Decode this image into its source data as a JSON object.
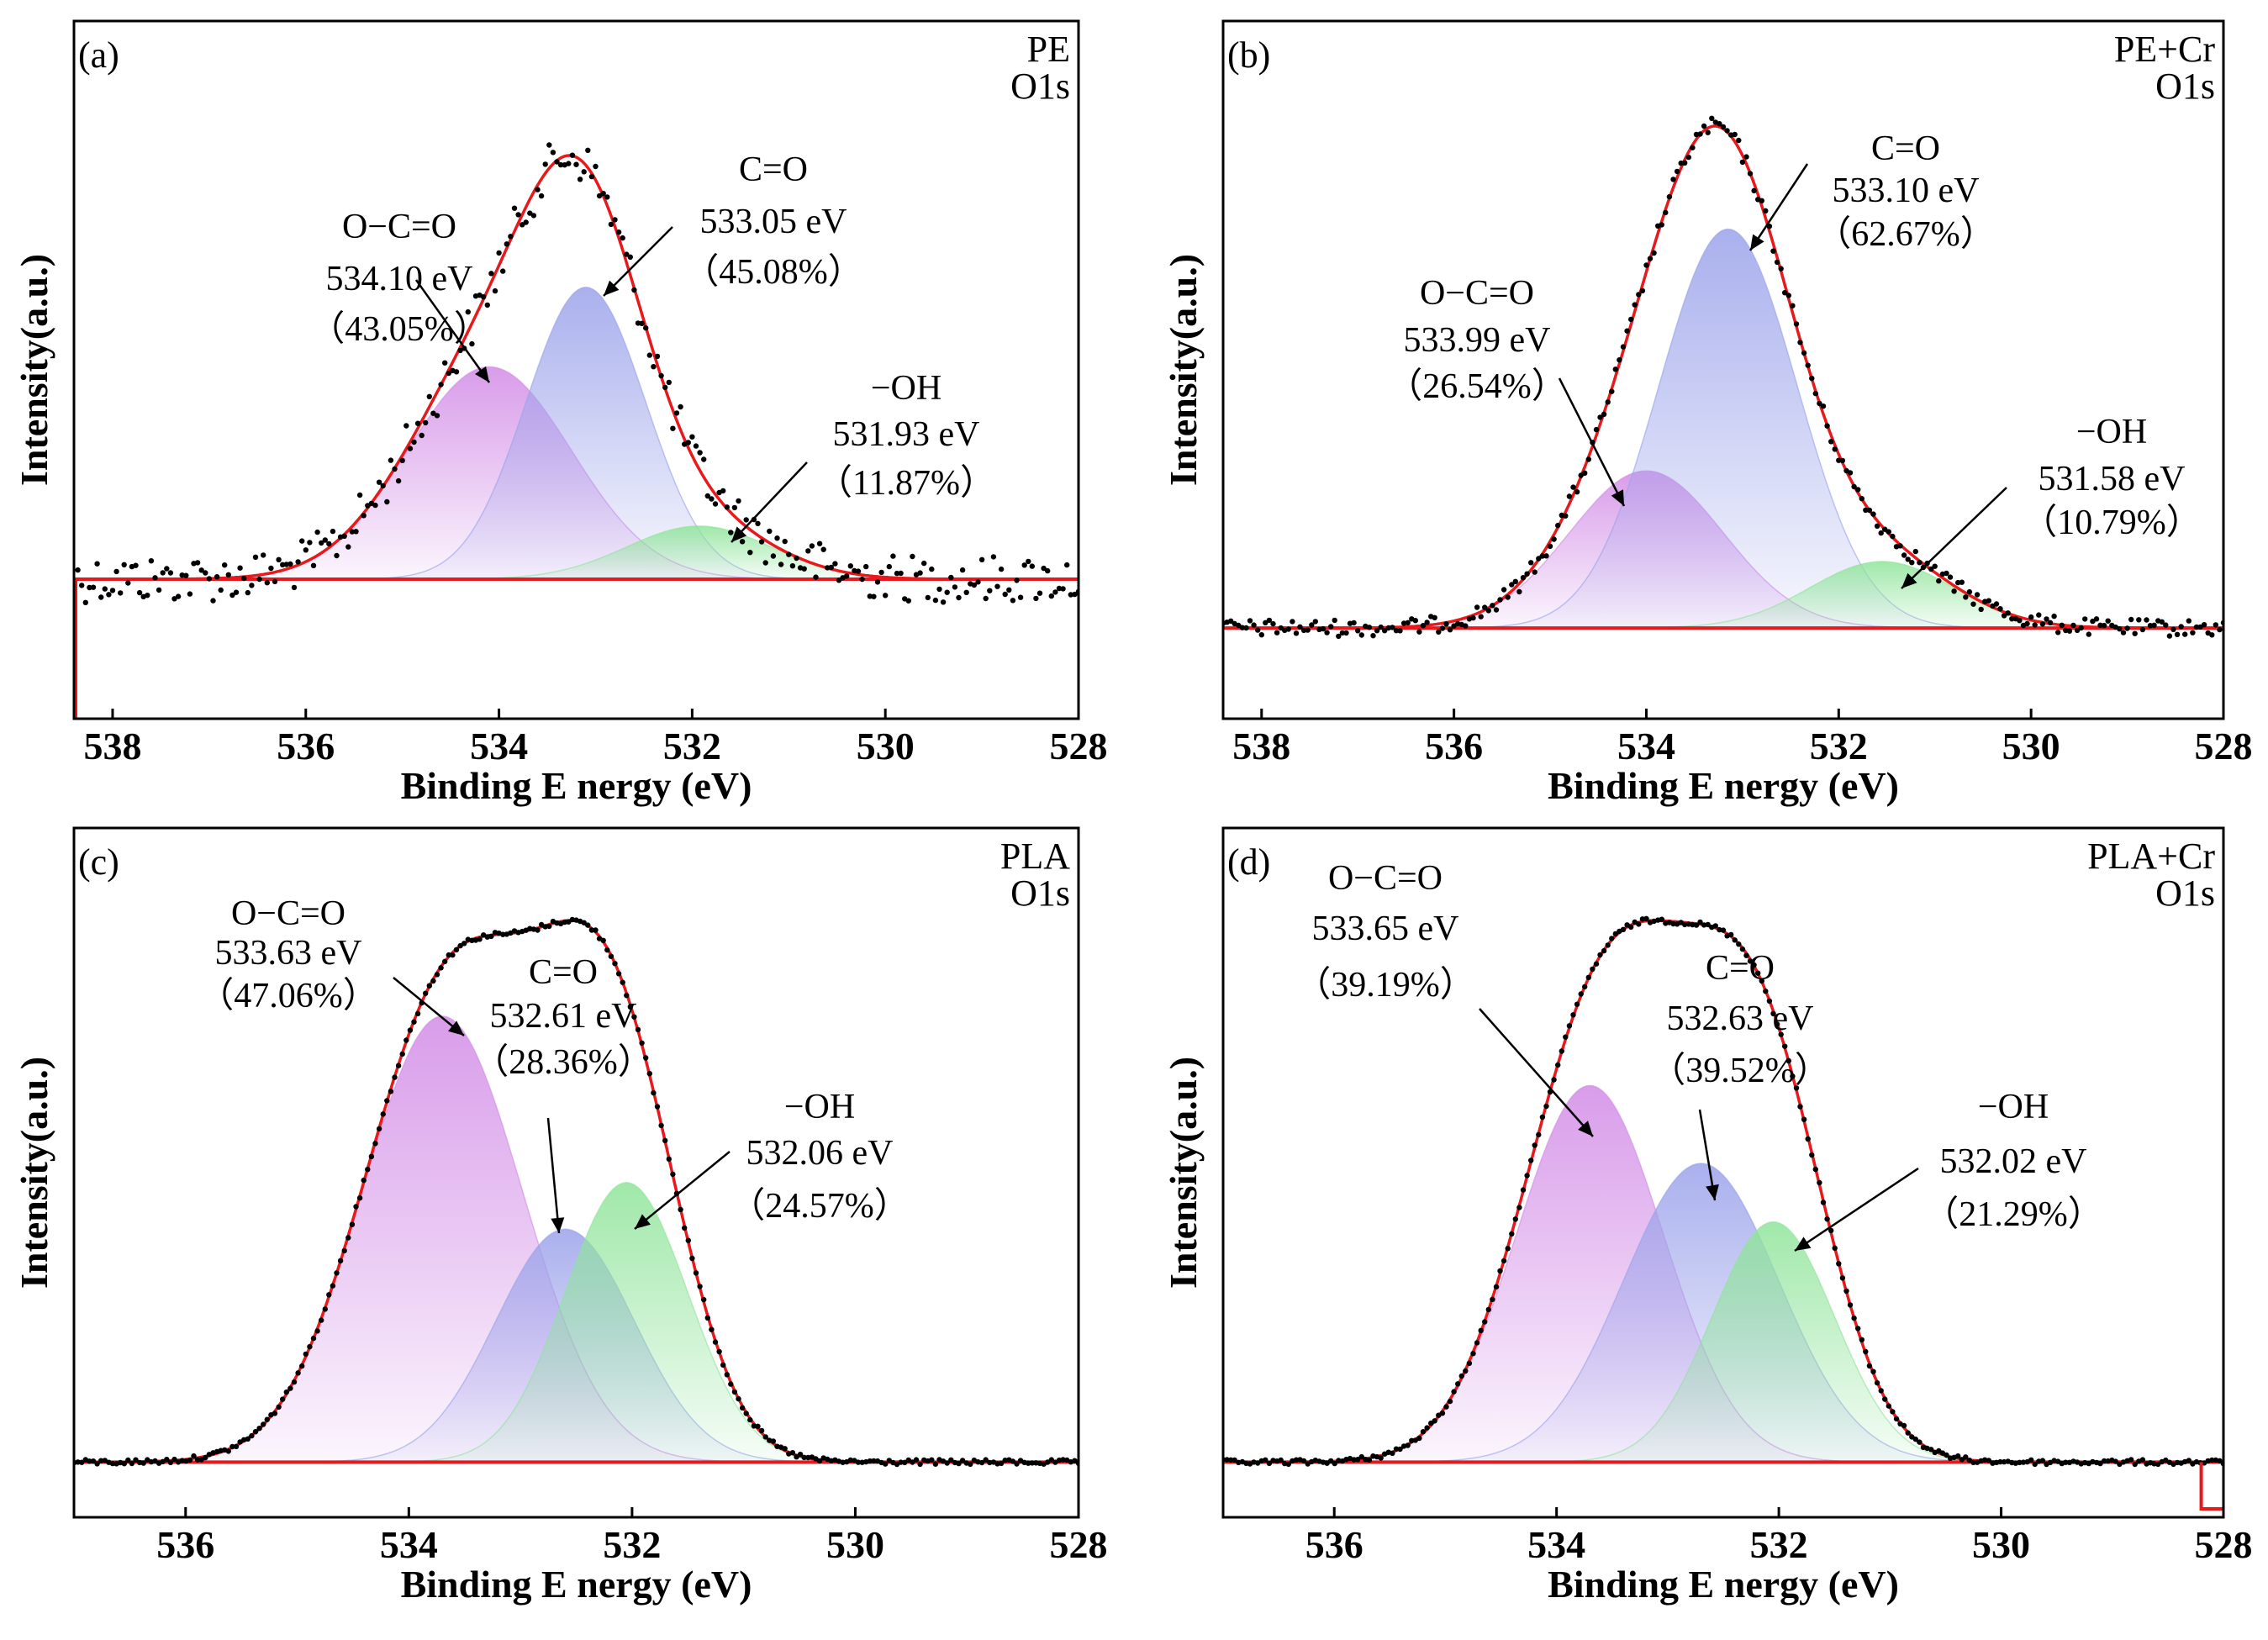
{
  "chart_data": [
    {
      "type": "line",
      "panel": "(a)",
      "title": "PE",
      "subtitle": "O1s",
      "xlabel": "Binding E nergy (eV)",
      "ylabel": "Intensity(a.u.)",
      "xlim": [
        538.4,
        528
      ],
      "ylim": [
        0,
        1
      ],
      "xticks": [
        538,
        536,
        534,
        532,
        530,
        528
      ],
      "baseline": 0.2,
      "noise": 0.06,
      "peaks": [
        {
          "name": "O−C=O",
          "energy": "534.10 eV",
          "percent": "（43.05%）",
          "center": 534.1,
          "height": 0.32,
          "sigma": 0.85,
          "color": "#d28be6"
        },
        {
          "name": "C=O",
          "energy": "533.05 eV",
          "percent": "（45.08%）",
          "center": 533.1,
          "height": 0.44,
          "sigma": 0.62,
          "color": "#9aa2ea"
        },
        {
          "name": "−OH",
          "energy": "531.93 eV",
          "percent": "（11.87%）",
          "center": 531.93,
          "height": 0.08,
          "sigma": 0.75,
          "color": "#8fe49a"
        }
      ]
    },
    {
      "type": "line",
      "panel": "(b)",
      "title": "PE+Cr",
      "subtitle": "O1s",
      "xlabel": "Binding E nergy (eV)",
      "ylabel": "Intensity(a.u.)",
      "xlim": [
        538.4,
        528
      ],
      "ylim": [
        0,
        1
      ],
      "xticks": [
        538,
        536,
        534,
        532,
        530,
        528
      ],
      "baseline": 0.13,
      "noise": 0.02,
      "peaks": [
        {
          "name": "O−C=O",
          "energy": "533.99 eV",
          "percent": "（26.54%）",
          "center": 534.0,
          "height": 0.26,
          "sigma": 0.8,
          "color": "#d28be6"
        },
        {
          "name": "C=O",
          "energy": "533.10 eV",
          "percent": "（62.67%）",
          "center": 533.15,
          "height": 0.66,
          "sigma": 0.72,
          "color": "#9aa2ea"
        },
        {
          "name": "−OH",
          "energy": "531.58 eV",
          "percent": "（10.79%）",
          "center": 531.55,
          "height": 0.11,
          "sigma": 0.75,
          "color": "#8fe49a"
        }
      ]
    },
    {
      "type": "line",
      "panel": "(c)",
      "title": "PLA",
      "subtitle": "O1s",
      "xlabel": "Binding E nergy (eV)",
      "ylabel": "Intensity(a.u.)",
      "xlim": [
        537,
        528
      ],
      "ylim": [
        0,
        1
      ],
      "xticks": [
        536,
        534,
        532,
        530,
        528
      ],
      "baseline": 0.08,
      "noise": 0.008,
      "peaks": [
        {
          "name": "O−C=O",
          "energy": "533.63 eV",
          "percent": "（47.06%）",
          "center": 533.7,
          "height": 0.67,
          "sigma": 0.72,
          "color": "#d28be6"
        },
        {
          "name": "C=O",
          "energy": "532.61 eV",
          "percent": "（28.36%）",
          "center": 532.6,
          "height": 0.35,
          "sigma": 0.62,
          "color": "#9aa2ea"
        },
        {
          "name": "−OH",
          "energy": "532.06 eV",
          "percent": "（24.57%）",
          "center": 532.05,
          "height": 0.42,
          "sigma": 0.55,
          "color": "#8fe49a"
        }
      ]
    },
    {
      "type": "line",
      "panel": "(d)",
      "title": "PLA+Cr",
      "subtitle": "O1s",
      "xlabel": "Binding E nergy (eV)",
      "ylabel": "Intensity(a.u.)",
      "xlim": [
        537,
        528
      ],
      "ylim": [
        0,
        1
      ],
      "xticks": [
        536,
        534,
        532,
        530,
        528
      ],
      "baseline": 0.08,
      "noise": 0.008,
      "peaks": [
        {
          "name": "O−C=O",
          "energy": "533.65 eV",
          "percent": "（39.19%）",
          "center": 533.7,
          "height": 0.58,
          "sigma": 0.66,
          "color": "#d28be6"
        },
        {
          "name": "C=O",
          "energy": "532.63 eV",
          "percent": "（39.52%）",
          "center": 532.7,
          "height": 0.46,
          "sigma": 0.7,
          "color": "#9aa2ea"
        },
        {
          "name": "−OH",
          "energy": "532.02 eV",
          "percent": "（21.29%）",
          "center": 532.05,
          "height": 0.37,
          "sigma": 0.55,
          "color": "#8fe49a"
        }
      ]
    }
  ],
  "colors": {
    "fit": "#e8191c",
    "points": "#000000",
    "frame": "#000000"
  }
}
